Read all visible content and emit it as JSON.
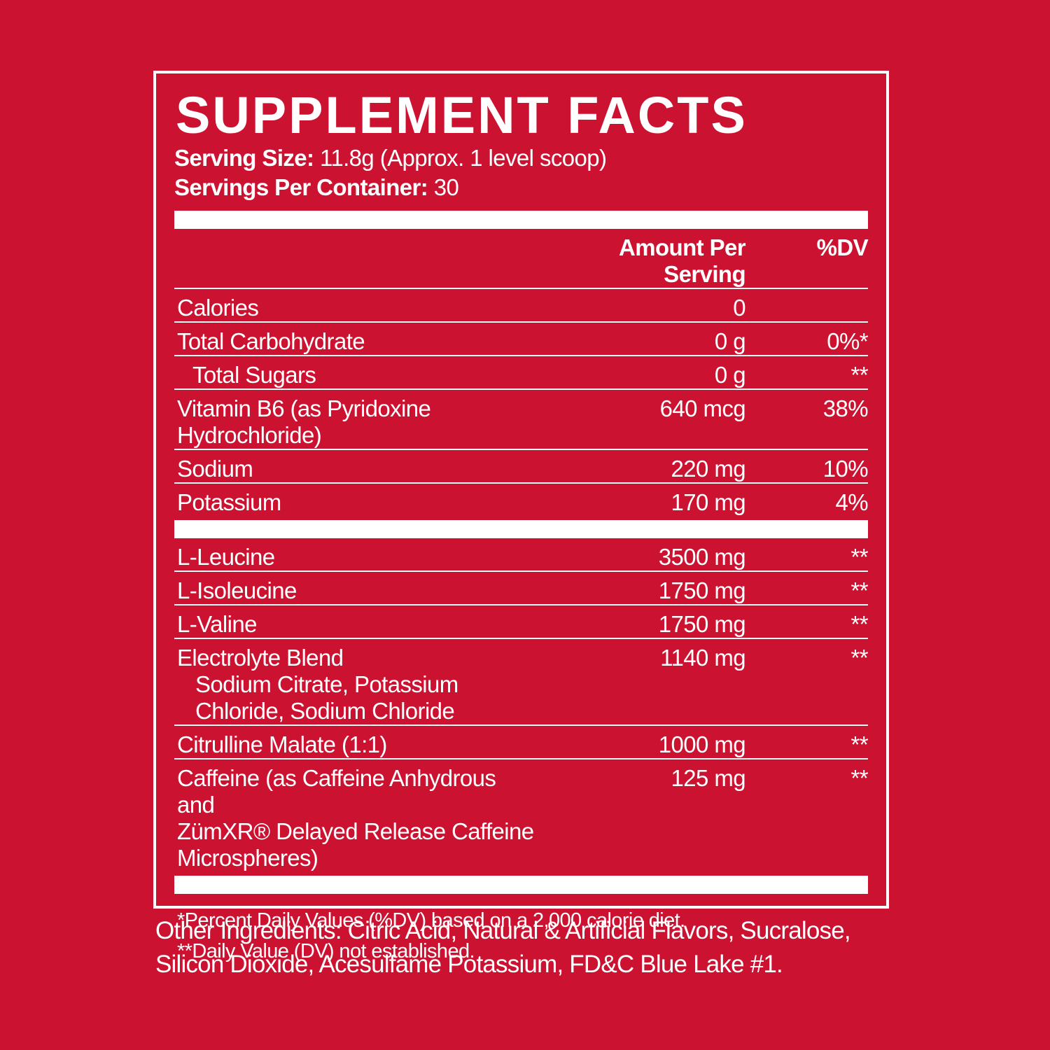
{
  "title": "SUPPLEMENT FACTS",
  "serving_size": {
    "label": "Serving Size:",
    "value": "11.8g (Approx. 1 level scoop)"
  },
  "servings_per_container": {
    "label": "Servings Per Container:",
    "value": "30"
  },
  "table": {
    "header": [
      "Amount Per Serving",
      "%DV"
    ],
    "sections": [
      {
        "rows": [
          {
            "name": "Calories",
            "amount": "0"
          },
          {
            "name": "Total Carbohydrate",
            "amount": "0 g",
            "dv": "0%*"
          },
          {
            "name": "Total Sugars",
            "amount": "0 g",
            "dv": "**",
            "indent": true
          },
          {
            "name": "Vitamin B6 (as Pyridoxine Hydrochloride)",
            "amount": "640 mcg",
            "dv": "38%"
          },
          {
            "name": "Sodium",
            "amount": "220 mg",
            "dv": "10%"
          },
          {
            "name": "Potassium",
            "amount": "170 mg",
            "dv": "4%"
          }
        ]
      },
      {
        "rows": [
          {
            "name": "L-Leucine",
            "amount": "3500 mg",
            "dv": "**"
          },
          {
            "name": "L-Isoleucine",
            "amount": "1750 mg",
            "dv": "**"
          },
          {
            "name": "L-Valine",
            "amount": "1750 mg",
            "dv": "**"
          },
          {
            "name": "Electrolyte Blend",
            "amount": "1140 mg",
            "dv": "**",
            "sub": "Sodium Citrate, Potassium Chloride, Sodium Chloride"
          },
          {
            "name": "Citrulline Malate (1:1)",
            "amount": "1000 mg",
            "dv": "**"
          },
          {
            "name": "Caffeine (as Caffeine Anhydrous and",
            "name_continued": "ZümXR® Delayed Release Caffeine Microspheres)",
            "amount": "125 mg",
            "dv": "**"
          }
        ]
      }
    ]
  },
  "footnotes": [
    "*Percent Daily Values (%DV) based on a 2,000 calorie diet.",
    "**Daily Value (DV) not established."
  ],
  "other_ingredients": [
    "Other Ingredients: Citric Acid, Natural & Artificial Flavors, Sucralose,",
    "Silicon Dioxide, Acesulfame Potassium, FD&C Blue Lake #1."
  ]
}
